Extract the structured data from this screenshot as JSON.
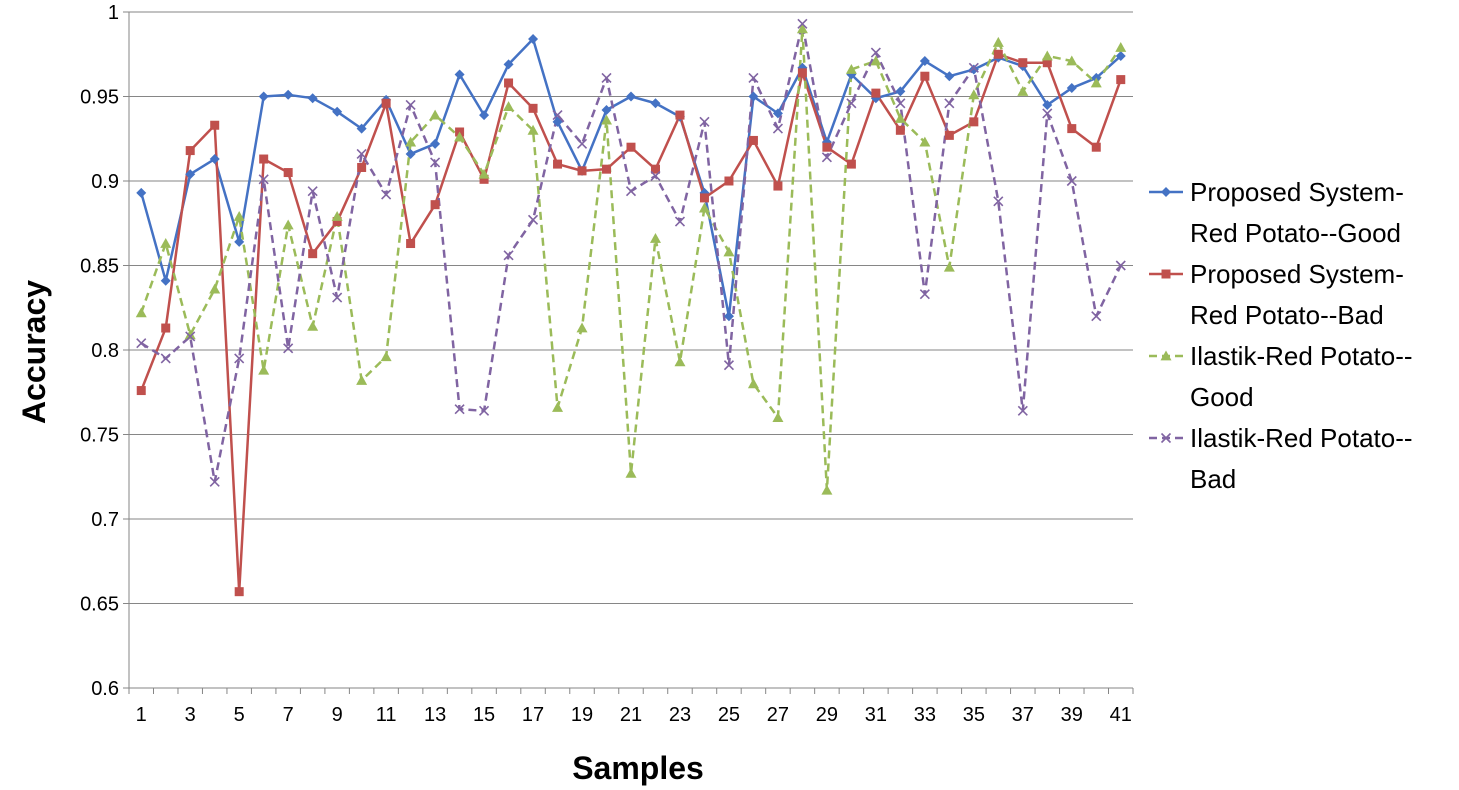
{
  "chart_data": {
    "type": "line",
    "xlabel": "Samples",
    "ylabel": "Accuracy",
    "ylim": [
      0.6,
      1
    ],
    "yticks": [
      "0.6",
      "0.65",
      "0.7",
      "0.75",
      "0.8",
      "0.85",
      "0.9",
      "0.95",
      "1"
    ],
    "x": [
      1,
      2,
      3,
      4,
      5,
      6,
      7,
      8,
      9,
      10,
      11,
      12,
      13,
      14,
      15,
      16,
      17,
      18,
      19,
      20,
      21,
      22,
      23,
      24,
      25,
      26,
      27,
      28,
      29,
      30,
      31,
      32,
      33,
      34,
      35,
      36,
      37,
      38,
      39,
      40,
      41
    ],
    "xtick_labels": [
      "1",
      "3",
      "5",
      "7",
      "9",
      "11",
      "13",
      "15",
      "17",
      "19",
      "21",
      "23",
      "25",
      "27",
      "29",
      "31",
      "33",
      "35",
      "37",
      "39",
      "41"
    ],
    "grid": "horizontal",
    "legend_position": "right",
    "series": [
      {
        "name_lines": [
          "Proposed System-",
          "Red Potato--Good"
        ],
        "color": "#4472C4",
        "dash": "solid",
        "marker": "diamond",
        "values": [
          0.893,
          0.841,
          0.904,
          0.913,
          0.864,
          0.95,
          0.951,
          0.949,
          0.941,
          0.931,
          0.948,
          0.916,
          0.922,
          0.963,
          0.939,
          0.969,
          0.984,
          0.935,
          0.906,
          0.942,
          0.95,
          0.946,
          0.938,
          0.893,
          0.82,
          0.95,
          0.94,
          0.967,
          0.923,
          0.963,
          0.949,
          0.953,
          0.971,
          0.962,
          0.966,
          0.973,
          0.968,
          0.945,
          0.955,
          0.961,
          0.974
        ]
      },
      {
        "name_lines": [
          "Proposed System-",
          "Red Potato--Bad"
        ],
        "color": "#C0504D",
        "dash": "solid",
        "marker": "square",
        "values": [
          0.776,
          0.813,
          0.918,
          0.933,
          0.657,
          0.913,
          0.905,
          0.857,
          0.876,
          0.908,
          0.946,
          0.863,
          0.886,
          0.929,
          0.901,
          0.958,
          0.943,
          0.91,
          0.906,
          0.907,
          0.92,
          0.907,
          0.939,
          0.89,
          0.9,
          0.924,
          0.897,
          0.964,
          0.92,
          0.91,
          0.952,
          0.93,
          0.962,
          0.927,
          0.935,
          0.975,
          0.97,
          0.97,
          0.931,
          0.92,
          0.96
        ]
      },
      {
        "name_lines": [
          "Ilastik-Red Potato--",
          "Good"
        ],
        "color": "#9BBB59",
        "dash": "dashed",
        "marker": "triangle",
        "values": [
          0.822,
          0.863,
          0.809,
          0.836,
          0.879,
          0.788,
          0.874,
          0.814,
          0.879,
          0.782,
          0.796,
          0.923,
          0.939,
          0.926,
          0.904,
          0.944,
          0.93,
          0.766,
          0.813,
          0.936,
          0.727,
          0.866,
          0.793,
          0.884,
          0.858,
          0.78,
          0.76,
          0.99,
          0.717,
          0.966,
          0.971,
          0.937,
          0.923,
          0.849,
          0.951,
          0.982,
          0.953,
          0.974,
          0.971,
          0.958,
          0.979
        ]
      },
      {
        "name_lines": [
          "Ilastik-Red Potato--",
          "Bad"
        ],
        "color": "#8064A2",
        "dash": "dashed",
        "marker": "x",
        "values": [
          0.804,
          0.795,
          0.808,
          0.722,
          0.795,
          0.901,
          0.801,
          0.894,
          0.831,
          0.916,
          0.892,
          0.945,
          0.911,
          0.765,
          0.764,
          0.856,
          0.877,
          0.939,
          0.922,
          0.961,
          0.894,
          0.903,
          0.876,
          0.935,
          0.791,
          0.961,
          0.931,
          0.993,
          0.914,
          0.946,
          0.976,
          0.946,
          0.833,
          0.946,
          0.967,
          0.888,
          0.764,
          0.94,
          0.9,
          0.82,
          0.85
        ]
      }
    ]
  }
}
